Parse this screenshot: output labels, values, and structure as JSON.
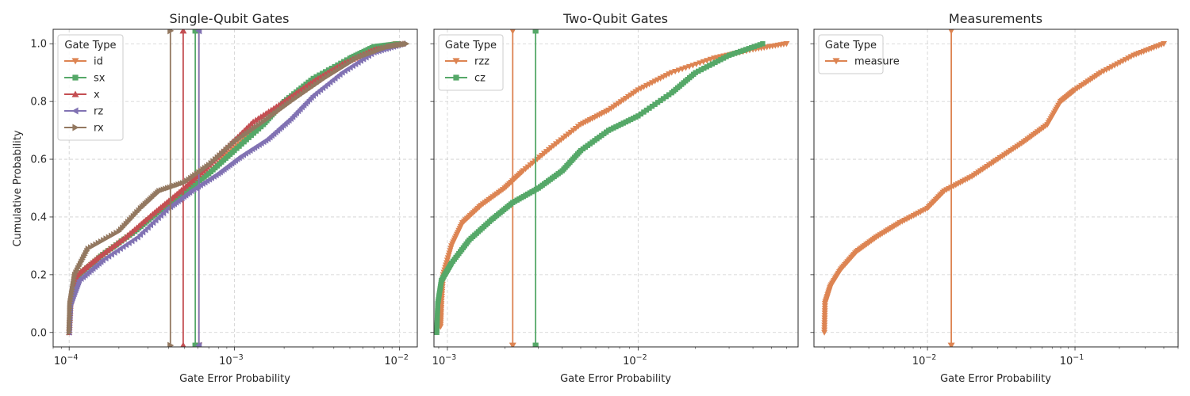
{
  "colors": {
    "orange": "#dd8452",
    "green": "#55a868",
    "red": "#c44e52",
    "purple": "#8172b3",
    "brown": "#937860"
  },
  "figure": {
    "ylabel": "Cumulative Probability",
    "xlabel": "Gate Error Probability"
  },
  "chart_data": [
    {
      "type": "line",
      "title": "Single-Qubit Gates",
      "xscale": "log",
      "xlim": [
        8e-05,
        0.0128
      ],
      "ylim": [
        -0.05,
        1.05
      ],
      "xticks": [
        {
          "value": 0.0001,
          "base": "10",
          "exp": "−4"
        },
        {
          "value": 0.001,
          "base": "10",
          "exp": "−3"
        },
        {
          "value": 0.01,
          "base": "10",
          "exp": "−2"
        }
      ],
      "yticks": [
        {
          "value": 0.0,
          "label": "0.0"
        },
        {
          "value": 0.2,
          "label": "0.2"
        },
        {
          "value": 0.4,
          "label": "0.4"
        },
        {
          "value": 0.6,
          "label": "0.6"
        },
        {
          "value": 0.8,
          "label": "0.8"
        },
        {
          "value": 1.0,
          "label": "1.0"
        }
      ],
      "show_yticklabels": true,
      "grid": true,
      "legend": {
        "title": "Gate Type",
        "position": "top-left"
      },
      "series": [
        {
          "name": "id",
          "color": "#dd8452",
          "marker": "triangle-down",
          "median": 0.00061,
          "points": [
            [
              0.0001,
              0
            ],
            [
              0.000102,
              0.1
            ],
            [
              0.000115,
              0.2
            ],
            [
              0.00016,
              0.27
            ],
            [
              0.00025,
              0.35
            ],
            [
              0.00035,
              0.42
            ],
            [
              0.0005,
              0.48
            ],
            [
              0.0007,
              0.55
            ],
            [
              0.001,
              0.64
            ],
            [
              0.0015,
              0.72
            ],
            [
              0.002,
              0.79
            ],
            [
              0.003,
              0.86
            ],
            [
              0.005,
              0.94
            ],
            [
              0.0075,
              0.98
            ],
            [
              0.0095,
              1.0
            ]
          ]
        },
        {
          "name": "sx",
          "color": "#55a868",
          "marker": "square",
          "median": 0.00058,
          "points": [
            [
              0.0001,
              0
            ],
            [
              0.000102,
              0.1
            ],
            [
              0.000115,
              0.2
            ],
            [
              0.00016,
              0.27
            ],
            [
              0.00025,
              0.35
            ],
            [
              0.00035,
              0.42
            ],
            [
              0.00048,
              0.48
            ],
            [
              0.0007,
              0.55
            ],
            [
              0.001,
              0.63
            ],
            [
              0.0015,
              0.72
            ],
            [
              0.002,
              0.8
            ],
            [
              0.003,
              0.88
            ],
            [
              0.005,
              0.95
            ],
            [
              0.007,
              0.99
            ],
            [
              0.0098,
              1.0
            ]
          ]
        },
        {
          "name": "x",
          "color": "#c44e52",
          "marker": "triangle-up",
          "median": 0.00049,
          "points": [
            [
              0.0001,
              0
            ],
            [
              0.000102,
              0.1
            ],
            [
              0.000112,
              0.2
            ],
            [
              0.00015,
              0.26
            ],
            [
              0.00022,
              0.33
            ],
            [
              0.00032,
              0.41
            ],
            [
              0.00045,
              0.48
            ],
            [
              0.00065,
              0.56
            ],
            [
              0.0009,
              0.64
            ],
            [
              0.0013,
              0.73
            ],
            [
              0.002,
              0.8
            ],
            [
              0.003,
              0.87
            ],
            [
              0.0045,
              0.93
            ],
            [
              0.007,
              0.98
            ],
            [
              0.0105,
              1.0
            ]
          ]
        },
        {
          "name": "rz",
          "color": "#8172b3",
          "marker": "triangle-left",
          "median": 0.00061,
          "points": [
            [
              0.0001,
              0
            ],
            [
              0.000102,
              0.1
            ],
            [
              0.000115,
              0.18
            ],
            [
              0.00016,
              0.25
            ],
            [
              0.00026,
              0.33
            ],
            [
              0.0004,
              0.43
            ],
            [
              0.00055,
              0.49
            ],
            [
              0.0008,
              0.55
            ],
            [
              0.0011,
              0.61
            ],
            [
              0.0016,
              0.67
            ],
            [
              0.0022,
              0.74
            ],
            [
              0.003,
              0.82
            ],
            [
              0.0045,
              0.9
            ],
            [
              0.007,
              0.97
            ],
            [
              0.0105,
              1.0
            ]
          ]
        },
        {
          "name": "rx",
          "color": "#937860",
          "marker": "triangle-right",
          "median": 0.00041,
          "points": [
            [
              0.0001,
              0
            ],
            [
              0.000101,
              0.1
            ],
            [
              0.000108,
              0.2
            ],
            [
              0.00013,
              0.29
            ],
            [
              0.0002,
              0.35
            ],
            [
              0.00027,
              0.43
            ],
            [
              0.00035,
              0.49
            ],
            [
              0.0005,
              0.52
            ],
            [
              0.0007,
              0.58
            ],
            [
              0.001,
              0.66
            ],
            [
              0.0015,
              0.73
            ],
            [
              0.0022,
              0.8
            ],
            [
              0.0035,
              0.88
            ],
            [
              0.0055,
              0.95
            ],
            [
              0.0085,
              0.99
            ],
            [
              0.011,
              1.0
            ]
          ]
        }
      ]
    },
    {
      "type": "line",
      "title": "Two-Qubit Gates",
      "xscale": "log",
      "xlim": [
        0.00085,
        0.069
      ],
      "ylim": [
        -0.05,
        1.05
      ],
      "xticks": [
        {
          "value": 0.001,
          "base": "10",
          "exp": "−3"
        },
        {
          "value": 0.01,
          "base": "10",
          "exp": "−2"
        }
      ],
      "yticks": [
        {
          "value": 0.0
        },
        {
          "value": 0.2
        },
        {
          "value": 0.4
        },
        {
          "value": 0.6
        },
        {
          "value": 0.8
        },
        {
          "value": 1.0
        }
      ],
      "show_yticklabels": false,
      "grid": true,
      "legend": {
        "title": "Gate Type",
        "position": "top-left"
      },
      "series": [
        {
          "name": "rzz",
          "color": "#dd8452",
          "marker": "triangle-down",
          "median": 0.0022,
          "points": [
            [
              0.00092,
              0.02
            ],
            [
              0.00093,
              0.1
            ],
            [
              0.00095,
              0.2
            ],
            [
              0.00105,
              0.3
            ],
            [
              0.0012,
              0.38
            ],
            [
              0.0015,
              0.44
            ],
            [
              0.002,
              0.5
            ],
            [
              0.0025,
              0.56
            ],
            [
              0.0035,
              0.64
            ],
            [
              0.005,
              0.72
            ],
            [
              0.007,
              0.77
            ],
            [
              0.01,
              0.84
            ],
            [
              0.015,
              0.9
            ],
            [
              0.025,
              0.95
            ],
            [
              0.04,
              0.98
            ],
            [
              0.06,
              1.0
            ]
          ]
        },
        {
          "name": "cz",
          "color": "#55a868",
          "marker": "square",
          "median": 0.0029,
          "points": [
            [
              0.00088,
              0
            ],
            [
              0.00089,
              0.1
            ],
            [
              0.00093,
              0.18
            ],
            [
              0.00105,
              0.24
            ],
            [
              0.0013,
              0.32
            ],
            [
              0.0017,
              0.39
            ],
            [
              0.0022,
              0.45
            ],
            [
              0.003,
              0.5
            ],
            [
              0.004,
              0.56
            ],
            [
              0.005,
              0.63
            ],
            [
              0.007,
              0.7
            ],
            [
              0.01,
              0.75
            ],
            [
              0.015,
              0.83
            ],
            [
              0.02,
              0.9
            ],
            [
              0.03,
              0.96
            ],
            [
              0.045,
              1.0
            ]
          ]
        }
      ]
    },
    {
      "type": "line",
      "title": "Measurements",
      "xscale": "log",
      "xlim": [
        0.0017,
        0.5
      ],
      "ylim": [
        -0.05,
        1.05
      ],
      "xticks": [
        {
          "value": 0.01,
          "base": "10",
          "exp": "−2"
        },
        {
          "value": 0.1,
          "base": "10",
          "exp": "−1"
        }
      ],
      "yticks": [
        {
          "value": 0.0
        },
        {
          "value": 0.2
        },
        {
          "value": 0.4
        },
        {
          "value": 0.6
        },
        {
          "value": 0.8
        },
        {
          "value": 1.0
        }
      ],
      "show_yticklabels": false,
      "grid": true,
      "legend": {
        "title": "Gate Type",
        "position": "top-left"
      },
      "series": [
        {
          "name": "measure",
          "color": "#dd8452",
          "marker": "triangle-down",
          "median": 0.0145,
          "points": [
            [
              0.002,
              0
            ],
            [
              0.00202,
              0.1
            ],
            [
              0.0022,
              0.16
            ],
            [
              0.0026,
              0.22
            ],
            [
              0.0033,
              0.28
            ],
            [
              0.0045,
              0.33
            ],
            [
              0.0065,
              0.38
            ],
            [
              0.01,
              0.43
            ],
            [
              0.013,
              0.49
            ],
            [
              0.02,
              0.54
            ],
            [
              0.03,
              0.6
            ],
            [
              0.045,
              0.66
            ],
            [
              0.065,
              0.72
            ],
            [
              0.08,
              0.8
            ],
            [
              0.1,
              0.84
            ],
            [
              0.15,
              0.9
            ],
            [
              0.25,
              0.96
            ],
            [
              0.4,
              1.0
            ]
          ]
        }
      ]
    }
  ]
}
